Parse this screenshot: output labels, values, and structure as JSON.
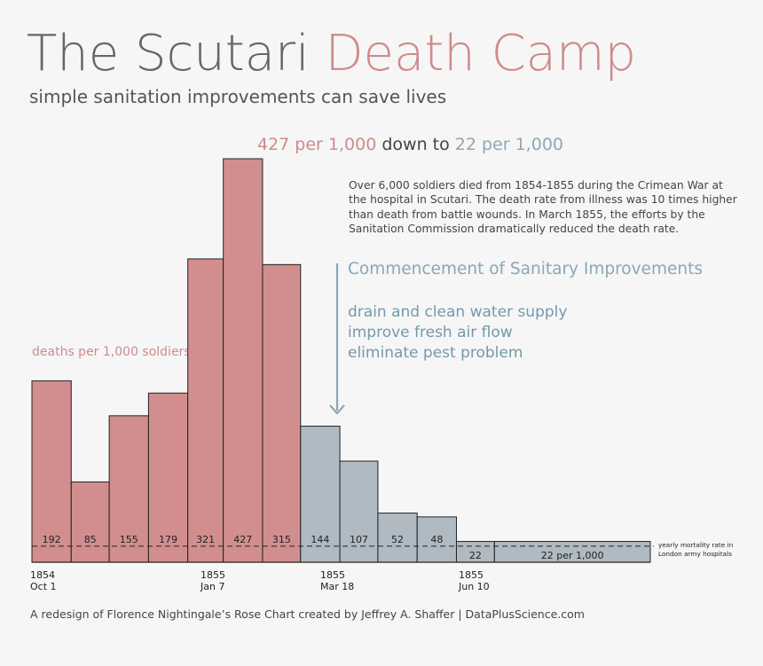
{
  "title": {
    "part1": "The Scutari ",
    "part2": "Death Camp"
  },
  "subtitle": "simple sanitation improvements can save lives",
  "headline": {
    "before": "427 per 1,000",
    "middle": " down to ",
    "after": "22 per 1,000"
  },
  "note": "Over 6,000 soldiers died from 1854-1855 during the Crimean War at the hospital in Scutari. The death rate from illness was 10 times higher than death from battle wounds. In March 1855, the efforts by the Sanitation Commission dramatically reduced the death rate.",
  "commencement": "Commencement of Sanitary Improvements",
  "actions": [
    "drain and clean water supply",
    "improve fresh air flow",
    "eliminate pest problem"
  ],
  "ylabel": "deaths per 1,000 soldiers",
  "baseline_label": [
    "yearly mortality rate in",
    "London army hospitals"
  ],
  "footer": "A redesign of Florence Nightingale’s Rose Chart created by Jeffrey A. Shaffer | DataPlusScience.com",
  "colors": {
    "before": "#d28e8f",
    "after": "#afbac2",
    "outline": "#222222",
    "title_gray": "#666666",
    "accent_red": "#d08a8b",
    "accent_blue": "#8aa7b6"
  },
  "chart_data": {
    "type": "bar",
    "ylabel": "deaths per 1,000 soldiers",
    "bars": [
      {
        "label": "192",
        "value": 192,
        "phase": "before",
        "start": "1854-10-01",
        "end": "1854-11-01"
      },
      {
        "label": "85",
        "value": 85,
        "phase": "before",
        "start": "1854-11-01",
        "end": "1854-12-01"
      },
      {
        "label": "155",
        "value": 155,
        "phase": "before",
        "start": "1854-12-01",
        "end": "1855-01-01"
      },
      {
        "label": "179",
        "value": 179,
        "phase": "before",
        "start": "1855-01-01",
        "end": "1855-02-01"
      },
      {
        "label": "321",
        "value": 321,
        "phase": "before",
        "start": "1855-02-01",
        "end": "1855-03-01"
      },
      {
        "label": "427",
        "value": 427,
        "phase": "before",
        "start": "1855-03-01",
        "end": "1855-04-01"
      },
      {
        "label": "315",
        "value": 315,
        "phase": "before",
        "start": "1855-04-01",
        "end": "1855-05-01"
      },
      {
        "label": "144",
        "value": 144,
        "phase": "after",
        "start": "1855-05-01",
        "end": "1855-06-01"
      },
      {
        "label": "107",
        "value": 107,
        "phase": "after",
        "start": "1855-06-01",
        "end": "1855-07-01"
      },
      {
        "label": "52",
        "value": 52,
        "phase": "after",
        "start": "1855-07-01",
        "end": "1855-08-01"
      },
      {
        "label": "48",
        "value": 48,
        "phase": "after",
        "start": "1855-08-01",
        "end": "1855-09-01"
      },
      {
        "label": "22",
        "value": 22,
        "phase": "after",
        "start": "1855-09-01",
        "end": "1855-10-01"
      },
      {
        "label": "22 per 1,000",
        "value": 22,
        "phase": "after",
        "start": "1855-10-01",
        "end": "1856-02-01"
      }
    ],
    "baseline_value": 17,
    "ylim": [
      0,
      427
    ],
    "x_ticks": [
      {
        "year": "1854",
        "date": "Oct 1"
      },
      {
        "year": "1855",
        "date": "Jan 7"
      },
      {
        "year": "1855",
        "date": "Mar 18"
      },
      {
        "year": "1855",
        "date": "Jun 10"
      }
    ],
    "grid": false
  }
}
